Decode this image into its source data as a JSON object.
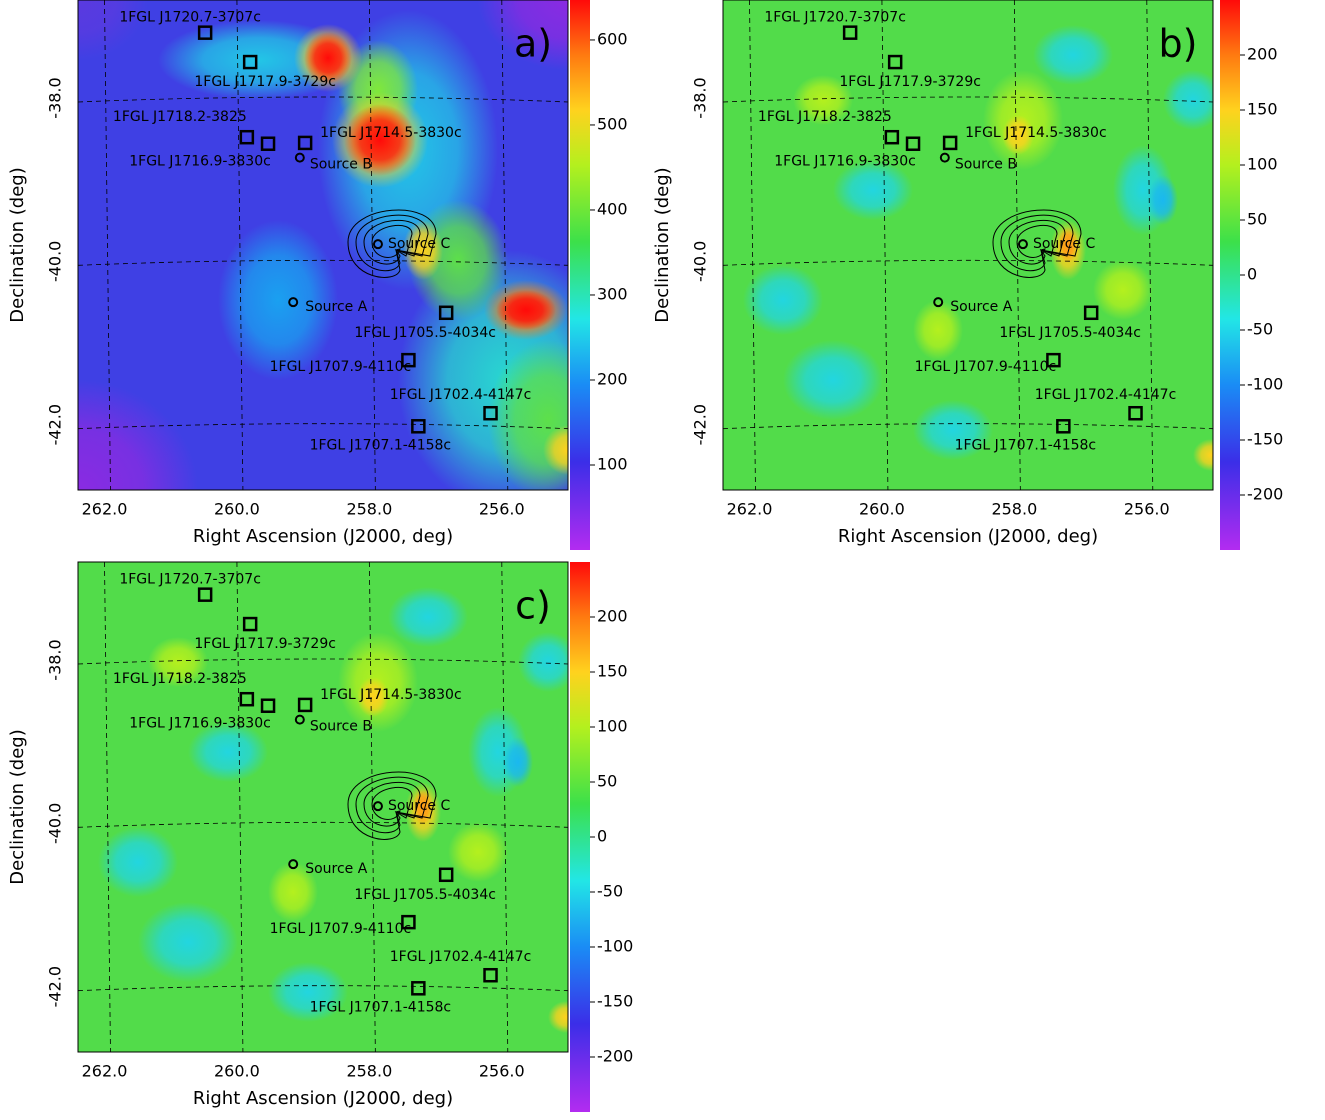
{
  "chart_data": [
    {
      "type": "heatmap",
      "panel_label": "a)",
      "xlabel": "Right Ascension (J2000, deg)",
      "ylabel": "Declination (deg)",
      "xlim": [
        262.4,
        255.0
      ],
      "ylim": [
        -42.8,
        -36.8
      ],
      "xticks": [
        {
          "value": 262,
          "label": "262.0"
        },
        {
          "value": 260,
          "label": "260.0"
        },
        {
          "value": 258,
          "label": "258.0"
        },
        {
          "value": 256,
          "label": "256.0"
        }
      ],
      "yticks": [
        {
          "value": -38,
          "label": "-38.0"
        },
        {
          "value": -40,
          "label": "-40.0"
        },
        {
          "value": -42,
          "label": "-42.0"
        }
      ],
      "grid": true,
      "colorbar": {
        "lim": [
          0,
          647
        ],
        "ticks": [
          100,
          200,
          300,
          400,
          500,
          600
        ]
      },
      "sources": [
        {
          "name": "1FGL J1720.7-3707c",
          "marker": "square",
          "ra": 260.48,
          "dec": -37.2
        },
        {
          "name": "1FGL J1717.9-3729c",
          "marker": "square",
          "ra": 259.8,
          "dec": -37.56
        },
        {
          "name": "1FGL J1718.2-3825",
          "marker": "square",
          "ra": 259.85,
          "dec": -38.48
        },
        {
          "name": "1FGL J1716.9-3830c",
          "marker": "square",
          "ra": 259.53,
          "dec": -38.56
        },
        {
          "name": "1FGL J1714.5-3830c",
          "marker": "square",
          "ra": 258.97,
          "dec": -38.55
        },
        {
          "name": "Source B",
          "marker": "circle",
          "ra": 259.05,
          "dec": -38.73
        },
        {
          "name": "Source C",
          "marker": "circle",
          "ra": 257.87,
          "dec": -39.79
        },
        {
          "name": "Source A",
          "marker": "circle",
          "ra": 259.15,
          "dec": -40.5
        },
        {
          "name": "1FGL J1705.5-4034c",
          "marker": "square",
          "ra": 256.84,
          "dec": -40.63
        },
        {
          "name": "1FGL J1707.9-4110c",
          "marker": "square",
          "ra": 257.41,
          "dec": -41.21
        },
        {
          "name": "1FGL J1702.4-4147c",
          "marker": "square",
          "ra": 256.17,
          "dec": -41.86
        },
        {
          "name": "1FGL J1707.1-4158c",
          "marker": "square",
          "ra": 257.26,
          "dec": -42.02
        }
      ]
    },
    {
      "type": "heatmap",
      "panel_label": "b)",
      "xlabel": "Right Ascension (J2000, deg)",
      "ylabel": "Declination (deg)",
      "xlim": [
        262.4,
        255.0
      ],
      "ylim": [
        -42.8,
        -36.8
      ],
      "xticks": [
        {
          "value": 262,
          "label": "262.0"
        },
        {
          "value": 260,
          "label": "260.0"
        },
        {
          "value": 258,
          "label": "258.0"
        },
        {
          "value": 256,
          "label": "256.0"
        }
      ],
      "yticks": [
        {
          "value": -38,
          "label": "-38.0"
        },
        {
          "value": -40,
          "label": "-40.0"
        },
        {
          "value": -42,
          "label": "-42.0"
        }
      ],
      "grid": true,
      "colorbar": {
        "lim": [
          -250,
          250
        ],
        "ticks": [
          -200,
          -150,
          -100,
          -50,
          0,
          50,
          100,
          150,
          200
        ]
      },
      "sources": [
        {
          "name": "1FGL J1720.7-3707c",
          "marker": "square",
          "ra": 260.48,
          "dec": -37.2
        },
        {
          "name": "1FGL J1717.9-3729c",
          "marker": "square",
          "ra": 259.8,
          "dec": -37.56
        },
        {
          "name": "1FGL J1718.2-3825",
          "marker": "square",
          "ra": 259.85,
          "dec": -38.48
        },
        {
          "name": "1FGL J1716.9-3830c",
          "marker": "square",
          "ra": 259.53,
          "dec": -38.56
        },
        {
          "name": "1FGL J1714.5-3830c",
          "marker": "square",
          "ra": 258.97,
          "dec": -38.55
        },
        {
          "name": "Source B",
          "marker": "circle",
          "ra": 259.05,
          "dec": -38.73
        },
        {
          "name": "Source C",
          "marker": "circle",
          "ra": 257.87,
          "dec": -39.79
        },
        {
          "name": "Source A",
          "marker": "circle",
          "ra": 259.15,
          "dec": -40.5
        },
        {
          "name": "1FGL J1705.5-4034c",
          "marker": "square",
          "ra": 256.84,
          "dec": -40.63
        },
        {
          "name": "1FGL J1707.9-4110c",
          "marker": "square",
          "ra": 257.41,
          "dec": -41.21
        },
        {
          "name": "1FGL J1702.4-4147c",
          "marker": "square",
          "ra": 256.17,
          "dec": -41.86
        },
        {
          "name": "1FGL J1707.1-4158c",
          "marker": "square",
          "ra": 257.26,
          "dec": -42.02
        }
      ]
    },
    {
      "type": "heatmap",
      "panel_label": "c)",
      "xlabel": "Right Ascension (J2000, deg)",
      "ylabel": "Declination (deg)",
      "xlim": [
        262.4,
        255.0
      ],
      "ylim": [
        -42.8,
        -36.8
      ],
      "xticks": [
        {
          "value": 262,
          "label": "262.0"
        },
        {
          "value": 260,
          "label": "260.0"
        },
        {
          "value": 258,
          "label": "258.0"
        },
        {
          "value": 256,
          "label": "256.0"
        }
      ],
      "yticks": [
        {
          "value": -38,
          "label": "-38.0"
        },
        {
          "value": -40,
          "label": "-40.0"
        },
        {
          "value": -42,
          "label": "-42.0"
        }
      ],
      "grid": true,
      "colorbar": {
        "lim": [
          -250,
          250
        ],
        "ticks": [
          -200,
          -150,
          -100,
          -50,
          0,
          50,
          100,
          150,
          200
        ]
      },
      "sources": [
        {
          "name": "1FGL J1720.7-3707c",
          "marker": "square",
          "ra": 260.48,
          "dec": -37.2
        },
        {
          "name": "1FGL J1717.9-3729c",
          "marker": "square",
          "ra": 259.8,
          "dec": -37.56
        },
        {
          "name": "1FGL J1718.2-3825",
          "marker": "square",
          "ra": 259.85,
          "dec": -38.48
        },
        {
          "name": "1FGL J1716.9-3830c",
          "marker": "square",
          "ra": 259.53,
          "dec": -38.56
        },
        {
          "name": "1FGL J1714.5-3830c",
          "marker": "square",
          "ra": 258.97,
          "dec": -38.55
        },
        {
          "name": "Source B",
          "marker": "circle",
          "ra": 259.05,
          "dec": -38.73
        },
        {
          "name": "Source C",
          "marker": "circle",
          "ra": 257.87,
          "dec": -39.79
        },
        {
          "name": "Source A",
          "marker": "circle",
          "ra": 259.15,
          "dec": -40.5
        },
        {
          "name": "1FGL J1705.5-4034c",
          "marker": "square",
          "ra": 256.84,
          "dec": -40.63
        },
        {
          "name": "1FGL J1707.9-4110c",
          "marker": "square",
          "ra": 257.41,
          "dec": -41.21
        },
        {
          "name": "1FGL J1702.4-4147c",
          "marker": "square",
          "ra": 256.17,
          "dec": -41.86
        },
        {
          "name": "1FGL J1707.1-4158c",
          "marker": "square",
          "ra": 257.26,
          "dec": -42.02
        }
      ]
    }
  ]
}
